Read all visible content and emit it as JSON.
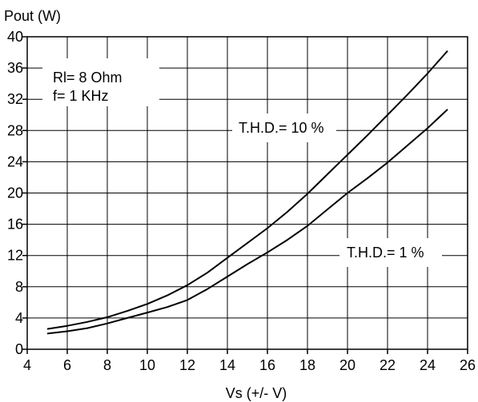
{
  "chart_data": {
    "type": "line",
    "ylabel": "Pout (W)",
    "xlabel": "Vs (+/- V)",
    "xlim": [
      4,
      26
    ],
    "ylim": [
      0,
      40
    ],
    "x_ticks": [
      4,
      6,
      8,
      10,
      12,
      14,
      16,
      18,
      20,
      22,
      24,
      26
    ],
    "y_ticks": [
      0,
      4,
      8,
      12,
      16,
      20,
      24,
      28,
      32,
      36,
      40
    ],
    "grid": true,
    "conditions": [
      "Rl= 8 Ohm",
      "f= 1 KHz"
    ],
    "series": [
      {
        "name": "T.H.D.= 10 %",
        "x": [
          5,
          6,
          7,
          8,
          9,
          10,
          11,
          12,
          13,
          14,
          15,
          16,
          17,
          18,
          19,
          20,
          21,
          22,
          23,
          24,
          25
        ],
        "y": [
          2.6,
          3.0,
          3.5,
          4.1,
          4.9,
          5.8,
          6.9,
          8.2,
          9.8,
          11.7,
          13.6,
          15.5,
          17.6,
          19.9,
          22.4,
          24.9,
          27.4,
          30.0,
          32.6,
          35.3,
          38.2
        ]
      },
      {
        "name": "T.H.D.= 1 %",
        "x": [
          5,
          6,
          7,
          8,
          9,
          10,
          11,
          12,
          13,
          14,
          15,
          16,
          17,
          18,
          19,
          20,
          21,
          22,
          23,
          24,
          25
        ],
        "y": [
          2.0,
          2.3,
          2.7,
          3.3,
          4.0,
          4.7,
          5.4,
          6.3,
          7.7,
          9.3,
          10.9,
          12.4,
          14.0,
          15.8,
          17.9,
          20.0,
          21.9,
          23.9,
          26.1,
          28.3,
          30.7
        ]
      }
    ]
  }
}
